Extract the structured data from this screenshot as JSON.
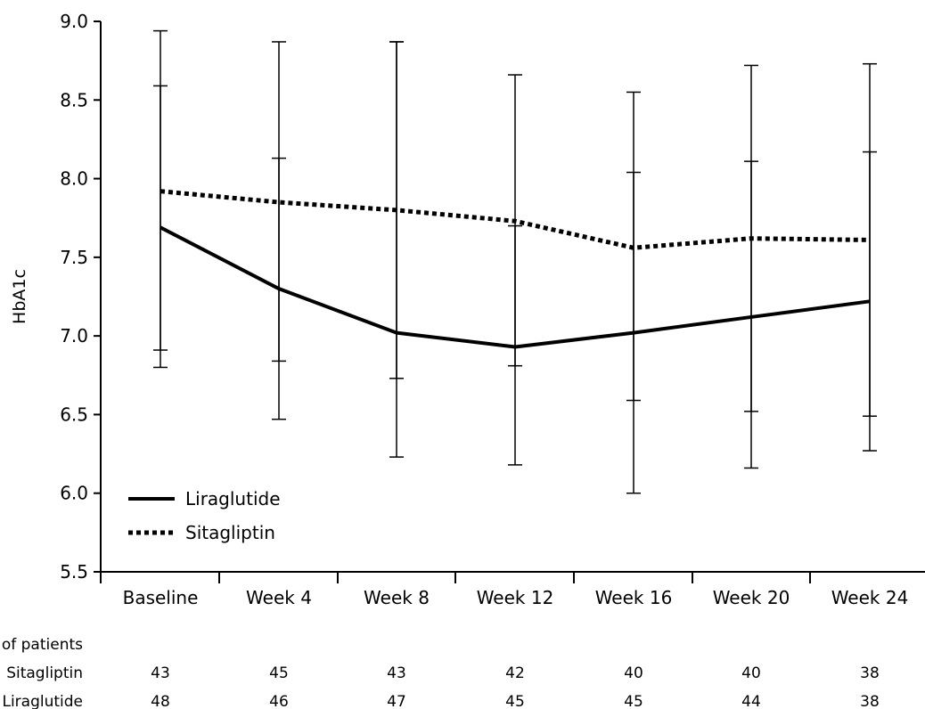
{
  "chart_data": {
    "type": "line",
    "title": "",
    "xlabel": "",
    "ylabel": "HbA1c",
    "ylim": [
      5.5,
      9.0
    ],
    "yticks": [
      "5.5",
      "6.0",
      "6.5",
      "7.0",
      "7.5",
      "8.0",
      "8.5",
      "9.0"
    ],
    "categories": [
      "Baseline",
      "Week 4",
      "Week 8",
      "Week 12",
      "Week 16",
      "Week 20",
      "Week 24"
    ],
    "legend_position": "lower-left",
    "grid": false,
    "series": [
      {
        "name": "Liraglutide",
        "style": "solid",
        "values": [
          7.69,
          7.3,
          7.02,
          6.93,
          7.02,
          7.12,
          7.22
        ],
        "error_low": [
          6.8,
          6.47,
          6.23,
          6.18,
          6.0,
          6.16,
          6.27
        ],
        "error_high": [
          8.59,
          8.13,
          8.87,
          8.66,
          8.04,
          8.11,
          8.17
        ]
      },
      {
        "name": "Sitagliptin",
        "style": "dotted",
        "values": [
          7.92,
          7.85,
          7.8,
          7.73,
          7.56,
          7.62,
          7.61
        ],
        "error_low": [
          6.91,
          6.84,
          6.73,
          6.81,
          6.59,
          6.52,
          6.49
        ],
        "error_high": [
          8.94,
          8.87,
          8.87,
          7.7,
          8.55,
          8.72,
          8.73
        ]
      }
    ],
    "table": {
      "header": "No. of patients",
      "rows": [
        {
          "label": "Sitagliptin",
          "values": [
            43,
            45,
            43,
            42,
            40,
            40,
            38
          ]
        },
        {
          "label": "Liraglutide",
          "values": [
            48,
            46,
            47,
            45,
            45,
            44,
            38
          ]
        }
      ]
    }
  }
}
